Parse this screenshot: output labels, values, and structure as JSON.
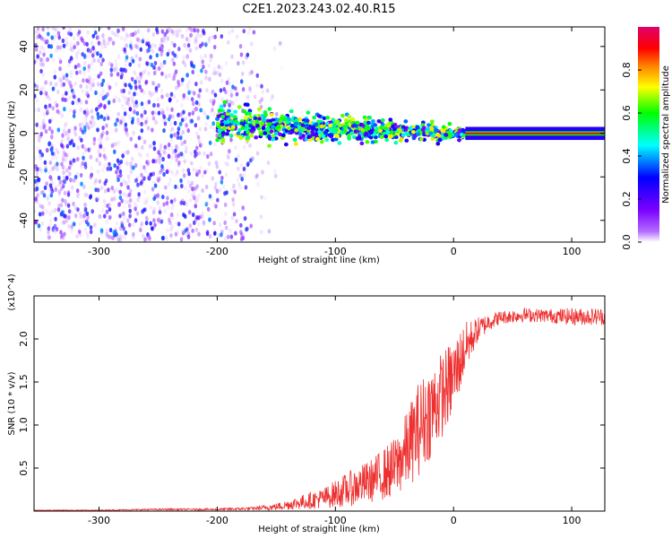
{
  "title": "C2E1.2023.243.02.40.R15",
  "chart_data": [
    {
      "type": "heatmap",
      "xlabel": "Height of straight line (km)",
      "ylabel": "Frequency (Hz)",
      "xlim": [
        -355,
        128
      ],
      "ylim": [
        -50,
        49
      ],
      "x_ticks": [
        -300,
        -200,
        -100,
        0,
        100
      ],
      "x_tick_labels": [
        "-300",
        "-200",
        "-100",
        "0",
        "100"
      ],
      "y_ticks": [
        -40,
        -20,
        0,
        20,
        40
      ],
      "y_tick_labels": [
        "-40",
        "-20",
        "0",
        "20",
        "40"
      ],
      "colorbar": {
        "label": "Normalized spectral amplitude",
        "range": [
          0,
          1
        ],
        "ticks": [
          0.0,
          0.2,
          0.4,
          0.6,
          0.8
        ],
        "tick_labels": [
          "0.0",
          "0.2",
          "0.4",
          "0.6",
          "0.8"
        ],
        "colors": [
          "#ffffff",
          "#b36bff",
          "#7a00ff",
          "#0000ff",
          "#00ffff",
          "#00ff00",
          "#ffff00",
          "#ff8000",
          "#ff0000",
          "#e0006a"
        ]
      },
      "bands": [
        {
          "x": [
            -355,
            -140
          ],
          "freq_center": 0,
          "freq_spread": 49,
          "amplitude": 0.15,
          "description": "diffuse noise"
        },
        {
          "x": [
            -200,
            10
          ],
          "freq_center": 4,
          "freq_spread": 6,
          "amplitude": 0.5
        },
        {
          "x": [
            10,
            128
          ],
          "freq_center": 0,
          "freq_spread": 2,
          "amplitude": 0.9
        }
      ]
    },
    {
      "type": "line",
      "xlabel": "Height of straight line (km)",
      "ylabel": "SNR (10 * v/v)",
      "y_multiplier": "(x10^4)",
      "xlim": [
        -355,
        128
      ],
      "ylim": [
        0,
        2.5
      ],
      "x_ticks": [
        -300,
        -200,
        -100,
        0,
        100
      ],
      "x_tick_labels": [
        "-300",
        "-200",
        "-100",
        "0",
        "100"
      ],
      "y_ticks": [
        0.5,
        1.0,
        1.5,
        2.0
      ],
      "y_tick_labels": [
        "0.5",
        "1.0",
        "1.5",
        "2.0"
      ],
      "color": "#ee3030",
      "series": [
        {
          "x": [
            -355,
            -300,
            -250,
            -200,
            -170,
            -150,
            -130,
            -110,
            -90,
            -70,
            -50,
            -40,
            -30,
            -20,
            -10,
            0,
            10,
            20,
            30,
            40,
            60,
            80,
            100,
            128
          ],
          "values": [
            0.01,
            0.01,
            0.02,
            0.02,
            0.03,
            0.05,
            0.1,
            0.15,
            0.25,
            0.35,
            0.5,
            0.7,
            0.95,
            1.15,
            1.35,
            1.55,
            1.9,
            2.1,
            2.2,
            2.25,
            2.28,
            2.27,
            2.26,
            2.26
          ],
          "noise": [
            0.005,
            0.005,
            0.01,
            0.01,
            0.02,
            0.04,
            0.08,
            0.12,
            0.2,
            0.25,
            0.35,
            0.45,
            0.55,
            0.55,
            0.5,
            0.45,
            0.3,
            0.15,
            0.1,
            0.08,
            0.08,
            0.08,
            0.1,
            0.1
          ]
        }
      ]
    }
  ]
}
